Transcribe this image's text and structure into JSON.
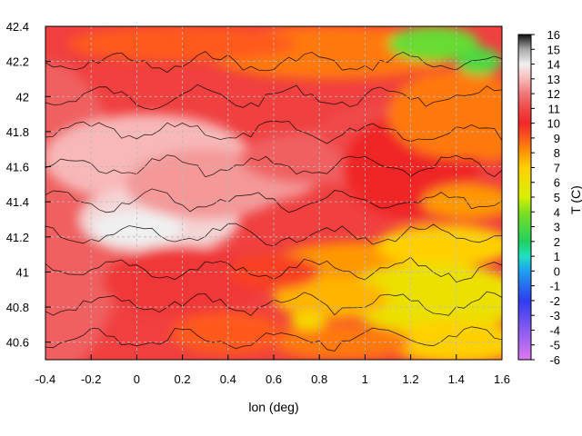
{
  "chart_data": {
    "type": "heatmap",
    "title": "",
    "xlabel": "lon (deg)",
    "ylabel": "",
    "colorbar_label": "T (C)",
    "xlim": [
      -0.4,
      1.6
    ],
    "ylim": [
      40.5,
      42.4
    ],
    "x_ticks": [
      "-0.4",
      "-0.2",
      "0",
      "0.2",
      "0.4",
      "0.6",
      "0.8",
      "1",
      "1.2",
      "1.4",
      "1.6"
    ],
    "y_ticks": [
      "40.6",
      "40.8",
      "41",
      "41.2",
      "41.4",
      "41.6",
      "41.8",
      "42",
      "42.2",
      "42.4"
    ],
    "colorbar_range": [
      -6,
      16
    ],
    "colorbar_ticks": [
      "16",
      "15",
      "14",
      "13",
      "12",
      "11",
      "10",
      "9",
      "8",
      "7",
      "6",
      "5",
      "4",
      "3",
      "2",
      "1",
      "0",
      "-1",
      "-2",
      "-3",
      "-4",
      "-5",
      "-6"
    ],
    "grid": true,
    "contour_lines": true,
    "colormap_stops": [
      {
        "value": -6,
        "color": "#dc78f0"
      },
      {
        "value": -4,
        "color": "#8a5cf0"
      },
      {
        "value": -2,
        "color": "#2e3cf0"
      },
      {
        "value": 0,
        "color": "#1ea0f0"
      },
      {
        "value": 1,
        "color": "#20e0c0"
      },
      {
        "value": 2,
        "color": "#20d060"
      },
      {
        "value": 4,
        "color": "#80e020"
      },
      {
        "value": 5,
        "color": "#d8f000"
      },
      {
        "value": 7,
        "color": "#ffd000"
      },
      {
        "value": 8,
        "color": "#ff9800"
      },
      {
        "value": 9,
        "color": "#ff5a1e"
      },
      {
        "value": 10,
        "color": "#f02828"
      },
      {
        "value": 11,
        "color": "#f04848"
      },
      {
        "value": 12,
        "color": "#f07878"
      },
      {
        "value": 13,
        "color": "#f8b8b8"
      },
      {
        "value": 14,
        "color": "#f0f0f0"
      },
      {
        "value": 15,
        "color": "#a8a8a8"
      },
      {
        "value": 16,
        "color": "#101010"
      }
    ]
  }
}
